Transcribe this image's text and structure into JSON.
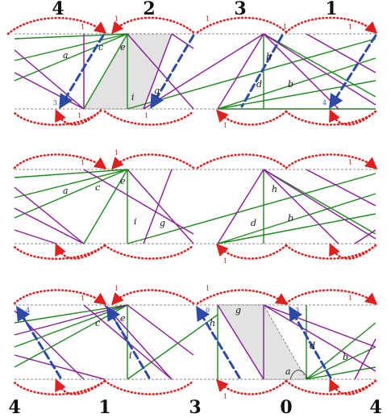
{
  "figure": {
    "top_numbers": [
      "4",
      "2",
      "3",
      "1"
    ],
    "bottom_numbers": [
      "4",
      "1",
      "3",
      "0",
      "4"
    ],
    "colors": {
      "green": "#1b8a1b",
      "purple": "#8a1a9a",
      "red": "#e0201e",
      "blue": "#2e4aa8",
      "dash": "#888888",
      "shade": "#dddddd"
    },
    "panel1": {
      "labels": [
        "a",
        "c",
        "e",
        "i",
        "g",
        "h",
        "d",
        "b"
      ],
      "arrow_marks": [
        "1",
        "1",
        "1",
        "1",
        "1",
        "3",
        "1",
        "1",
        "1",
        "4"
      ]
    },
    "panel2": {
      "labels": [
        "a",
        "c",
        "e",
        "i",
        "g",
        "h",
        "d",
        "b"
      ],
      "arrow_marks": [
        "1",
        "1",
        "1",
        "1"
      ]
    },
    "panel3": {
      "labels": [
        "c",
        "e",
        "i",
        "h",
        "g",
        "a",
        "d",
        "b"
      ],
      "arrow_marks": [
        "1",
        "4",
        "1",
        "1",
        "0",
        "3",
        "1",
        "1"
      ]
    }
  }
}
